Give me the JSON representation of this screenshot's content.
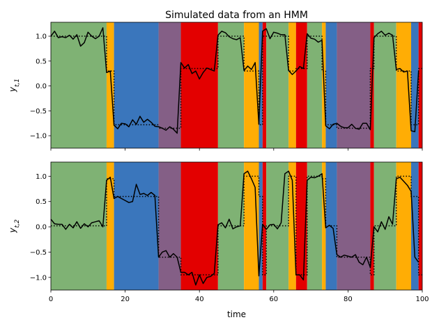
{
  "colors": {
    "state_0": "#7fb274",
    "state_1": "#ffad05",
    "state_2": "#3a76bc",
    "state_3": "#845f86",
    "state_4": "#e30000",
    "observed_line": "#000000",
    "mean_line": "#000000"
  },
  "chart_data": [
    {
      "type": "line",
      "title": "Simulated data from an HMM",
      "ylabel": "y_{t,1}",
      "xlabel": "",
      "xlim": [
        0,
        100
      ],
      "ylim": [
        -1.25,
        1.28
      ],
      "xticks": [
        0,
        20,
        40,
        60,
        80,
        100
      ],
      "xtick_labels": [
        "",
        "",
        "",
        "",
        "",
        ""
      ],
      "yticks": [
        -1.0,
        -0.5,
        0.0,
        0.5,
        1.0
      ],
      "ytick_labels": [
        "−1.0",
        "−0.5",
        "0.0",
        "0.5",
        "1.0"
      ],
      "grid": false,
      "state_segments": [
        {
          "start": 0,
          "end": 15,
          "state": 0
        },
        {
          "start": 15,
          "end": 17,
          "state": 1
        },
        {
          "start": 17,
          "end": 29,
          "state": 2
        },
        {
          "start": 29,
          "end": 35,
          "state": 3
        },
        {
          "start": 35,
          "end": 45,
          "state": 4
        },
        {
          "start": 45,
          "end": 52,
          "state": 0
        },
        {
          "start": 52,
          "end": 56,
          "state": 1
        },
        {
          "start": 56,
          "end": 57,
          "state": 2
        },
        {
          "start": 57,
          "end": 58,
          "state": 4
        },
        {
          "start": 58,
          "end": 64,
          "state": 0
        },
        {
          "start": 64,
          "end": 66,
          "state": 1
        },
        {
          "start": 66,
          "end": 69,
          "state": 4
        },
        {
          "start": 69,
          "end": 73,
          "state": 0
        },
        {
          "start": 73,
          "end": 74,
          "state": 1
        },
        {
          "start": 74,
          "end": 77,
          "state": 2
        },
        {
          "start": 77,
          "end": 86,
          "state": 3
        },
        {
          "start": 86,
          "end": 87,
          "state": 4
        },
        {
          "start": 87,
          "end": 93,
          "state": 0
        },
        {
          "start": 93,
          "end": 97,
          "state": 1
        },
        {
          "start": 97,
          "end": 99,
          "state": 2
        },
        {
          "start": 99,
          "end": 100,
          "state": 4
        }
      ],
      "series": [
        {
          "style": "solid",
          "x": [
            0,
            1,
            2,
            3,
            4,
            5,
            6,
            7,
            8,
            9,
            10,
            11,
            12,
            13,
            14,
            15,
            16,
            17,
            18,
            19,
            20,
            21,
            22,
            23,
            24,
            25,
            26,
            27,
            28,
            29,
            30,
            31,
            32,
            33,
            34,
            35,
            36,
            37,
            38,
            39,
            40,
            41,
            42,
            43,
            44,
            45,
            46,
            47,
            48,
            49,
            50,
            51,
            52,
            53,
            54,
            55,
            56,
            57,
            58,
            59,
            60,
            61,
            62,
            63,
            64,
            65,
            66,
            67,
            68,
            69,
            70,
            71,
            72,
            73,
            74,
            75,
            76,
            77,
            78,
            79,
            80,
            81,
            82,
            83,
            84,
            85,
            86,
            87,
            88,
            89,
            90,
            91,
            92,
            93,
            94,
            95,
            96,
            97,
            98,
            99
          ],
          "values": [
            1.0,
            1.1,
            0.97,
            0.99,
            0.97,
            1.02,
            0.94,
            1.03,
            0.8,
            0.87,
            1.08,
            1.0,
            0.95,
            1.0,
            1.17,
            0.27,
            0.3,
            -0.79,
            -0.86,
            -0.75,
            -0.76,
            -0.82,
            -0.68,
            -0.77,
            -0.61,
            -0.73,
            -0.67,
            -0.73,
            -0.81,
            -0.82,
            -0.85,
            -0.89,
            -0.82,
            -0.87,
            -0.95,
            0.47,
            0.36,
            0.43,
            0.25,
            0.3,
            0.14,
            0.27,
            0.36,
            0.33,
            0.3,
            1.02,
            1.1,
            1.07,
            0.99,
            0.95,
            0.93,
            0.97,
            0.31,
            0.4,
            0.33,
            0.47,
            -0.77,
            1.1,
            1.15,
            0.95,
            1.08,
            1.06,
            1.03,
            1.03,
            0.31,
            0.23,
            0.3,
            0.39,
            0.35,
            1.05,
            0.96,
            0.94,
            0.88,
            0.92,
            -0.8,
            -0.86,
            -0.77,
            -0.75,
            -0.81,
            -0.84,
            -0.84,
            -0.77,
            -0.85,
            -0.87,
            -0.75,
            -0.75,
            -0.88,
            0.97,
            1.05,
            1.1,
            1.02,
            1.06,
            1.02,
            0.33,
            0.35,
            0.28,
            0.3,
            -0.9,
            -0.92,
            0.3
          ]
        },
        {
          "style": "dotted",
          "x": [
            0,
            15,
            15,
            17,
            17,
            29,
            29,
            35,
            35,
            45,
            45,
            52,
            52,
            56,
            56,
            57,
            57,
            58,
            58,
            64,
            64,
            66,
            66,
            69,
            69,
            73,
            73,
            74,
            74,
            77,
            77,
            86,
            86,
            87,
            87,
            93,
            93,
            97,
            97,
            99,
            99,
            100
          ],
          "values": [
            1.0,
            1.0,
            0.3,
            0.3,
            -0.78,
            -0.78,
            -0.85,
            -0.85,
            0.35,
            0.35,
            1.0,
            1.0,
            0.3,
            0.3,
            -0.78,
            -0.78,
            1.0,
            1.0,
            1.0,
            1.0,
            0.3,
            0.3,
            0.35,
            0.35,
            1.0,
            1.0,
            0.3,
            0.3,
            -0.78,
            -0.78,
            -0.85,
            -0.85,
            0.35,
            0.35,
            1.0,
            1.0,
            0.3,
            0.3,
            -0.78,
            -0.78,
            0.35,
            0.35
          ]
        }
      ]
    },
    {
      "type": "line",
      "title": "",
      "ylabel": "y_{t,2}",
      "xlabel": "time",
      "xlim": [
        0,
        100
      ],
      "ylim": [
        -1.25,
        1.28
      ],
      "xticks": [
        0,
        20,
        40,
        60,
        80,
        100
      ],
      "xtick_labels": [
        "0",
        "20",
        "40",
        "60",
        "80",
        "100"
      ],
      "yticks": [
        -1.0,
        -0.5,
        0.0,
        0.5,
        1.0
      ],
      "ytick_labels": [
        "−1.0",
        "−0.5",
        "0.0",
        "0.5",
        "1.0"
      ],
      "grid": false,
      "state_segments": [
        {
          "start": 0,
          "end": 15,
          "state": 0
        },
        {
          "start": 15,
          "end": 17,
          "state": 1
        },
        {
          "start": 17,
          "end": 29,
          "state": 2
        },
        {
          "start": 29,
          "end": 35,
          "state": 3
        },
        {
          "start": 35,
          "end": 45,
          "state": 4
        },
        {
          "start": 45,
          "end": 52,
          "state": 0
        },
        {
          "start": 52,
          "end": 56,
          "state": 1
        },
        {
          "start": 56,
          "end": 57,
          "state": 2
        },
        {
          "start": 57,
          "end": 58,
          "state": 4
        },
        {
          "start": 58,
          "end": 64,
          "state": 0
        },
        {
          "start": 64,
          "end": 66,
          "state": 1
        },
        {
          "start": 66,
          "end": 69,
          "state": 4
        },
        {
          "start": 69,
          "end": 73,
          "state": 0
        },
        {
          "start": 73,
          "end": 74,
          "state": 1
        },
        {
          "start": 74,
          "end": 77,
          "state": 2
        },
        {
          "start": 77,
          "end": 86,
          "state": 3
        },
        {
          "start": 86,
          "end": 87,
          "state": 4
        },
        {
          "start": 87,
          "end": 93,
          "state": 0
        },
        {
          "start": 93,
          "end": 97,
          "state": 1
        },
        {
          "start": 97,
          "end": 99,
          "state": 2
        },
        {
          "start": 99,
          "end": 100,
          "state": 4
        }
      ],
      "series": [
        {
          "style": "solid",
          "x": [
            0,
            1,
            2,
            3,
            4,
            5,
            6,
            7,
            8,
            9,
            10,
            11,
            12,
            13,
            14,
            15,
            16,
            17,
            18,
            19,
            20,
            21,
            22,
            23,
            24,
            25,
            26,
            27,
            28,
            29,
            30,
            31,
            32,
            33,
            34,
            35,
            36,
            37,
            38,
            39,
            40,
            41,
            42,
            43,
            44,
            45,
            46,
            47,
            48,
            49,
            50,
            51,
            52,
            53,
            54,
            55,
            56,
            57,
            58,
            59,
            60,
            61,
            62,
            63,
            64,
            65,
            66,
            67,
            68,
            69,
            70,
            71,
            72,
            73,
            74,
            75,
            76,
            77,
            78,
            79,
            80,
            81,
            82,
            83,
            84,
            85,
            86,
            87,
            88,
            89,
            90,
            91,
            92,
            93,
            94,
            95,
            96,
            97,
            98,
            99
          ],
          "values": [
            0.15,
            0.06,
            0.05,
            0.05,
            -0.05,
            0.05,
            -0.02,
            0.1,
            -0.03,
            0.06,
            0.0,
            0.08,
            0.1,
            0.12,
            0.0,
            0.92,
            0.98,
            0.56,
            0.6,
            0.56,
            0.52,
            0.48,
            0.5,
            0.84,
            0.64,
            0.66,
            0.62,
            0.68,
            0.62,
            -0.6,
            -0.5,
            -0.47,
            -0.6,
            -0.53,
            -0.6,
            -0.9,
            -0.9,
            -0.95,
            -0.9,
            -1.15,
            -0.95,
            -1.12,
            -1.0,
            -0.98,
            -0.92,
            0.04,
            0.08,
            -0.02,
            0.15,
            -0.04,
            0.0,
            0.02,
            1.05,
            1.1,
            0.95,
            0.78,
            -0.97,
            0.05,
            -0.05,
            0.04,
            0.05,
            -0.04,
            0.08,
            1.05,
            1.1,
            0.92,
            -0.95,
            -0.95,
            -1.05,
            0.92,
            0.98,
            0.97,
            1.0,
            1.05,
            -0.02,
            0.03,
            -0.03,
            -0.55,
            -0.6,
            -0.56,
            -0.58,
            -0.6,
            -0.55,
            -0.7,
            -0.75,
            -0.6,
            -0.8,
            0.0,
            -0.1,
            0.1,
            -0.05,
            0.2,
            0.05,
            0.95,
            0.98,
            0.9,
            0.82,
            0.7,
            -0.6,
            -0.7
          ]
        },
        {
          "style": "dotted",
          "x": [
            0,
            15,
            15,
            17,
            17,
            29,
            29,
            35,
            35,
            45,
            45,
            52,
            52,
            56,
            56,
            57,
            57,
            58,
            58,
            64,
            64,
            66,
            66,
            69,
            69,
            73,
            73,
            74,
            74,
            77,
            77,
            86,
            86,
            87,
            87,
            93,
            93,
            97,
            97,
            99,
            99,
            100
          ],
          "values": [
            0.02,
            0.02,
            0.95,
            0.95,
            0.6,
            0.6,
            -0.6,
            -0.6,
            -0.95,
            -0.95,
            0.02,
            0.02,
            1.0,
            1.0,
            0.6,
            0.6,
            -0.95,
            -0.95,
            0.02,
            0.02,
            1.0,
            1.0,
            -0.95,
            -0.95,
            1.0,
            1.0,
            0.95,
            0.95,
            0.02,
            0.02,
            -0.6,
            -0.6,
            -0.95,
            -0.95,
            0.02,
            0.02,
            1.0,
            1.0,
            0.6,
            0.6,
            -0.95,
            -0.95
          ]
        }
      ]
    }
  ]
}
